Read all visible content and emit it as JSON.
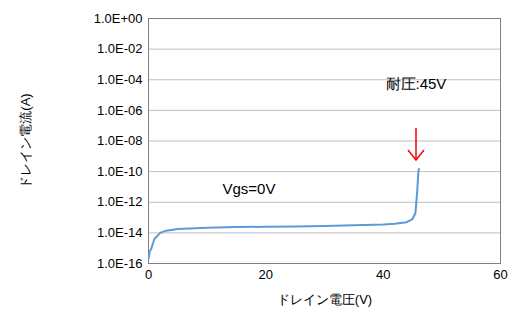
{
  "chart_data": {
    "type": "line",
    "x_label": "ドレイン電圧(V)",
    "y_label": "ドレイン電流(A)",
    "annotations": [
      "Vgs=0V",
      "耐圧:45V"
    ],
    "x": [
      0,
      0.2,
      0.5,
      1,
      2,
      3,
      5,
      8,
      10,
      15,
      20,
      25,
      30,
      35,
      40,
      42,
      44,
      45,
      45.5,
      45.8,
      46,
      46.1
    ],
    "values": [
      2e-16,
      6e-16,
      1e-15,
      4e-15,
      1e-14,
      1.4e-14,
      1.8e-14,
      2e-14,
      2.2e-14,
      2.4e-14,
      2.5e-14,
      2.6e-14,
      2.8e-14,
      3.1e-14,
      3.5e-14,
      4e-14,
      5e-14,
      8e-14,
      2e-13,
      5e-12,
      1e-10,
      1.5e-10
    ],
    "color": "#5b9bd5",
    "log": "y",
    "grid": true,
    "xlim": [
      0,
      60
    ],
    "xticks": [
      0,
      20,
      40,
      60
    ],
    "ylim": [
      1e-16,
      1
    ],
    "yticks": [
      {
        "value": 1,
        "label": "1.0E+00"
      },
      {
        "value": 0.01,
        "label": "1.0E-02"
      },
      {
        "value": 0.0001,
        "label": "1.0E-04"
      },
      {
        "value": 1e-06,
        "label": "1.0E-06"
      },
      {
        "value": 1e-08,
        "label": "1.0E-08"
      },
      {
        "value": 1e-10,
        "label": "1.0E-10"
      },
      {
        "value": 1e-12,
        "label": "1.0E-12"
      },
      {
        "value": 1e-14,
        "label": "1.0E-14"
      },
      {
        "value": 1e-16,
        "label": "1.0E-16"
      }
    ],
    "annotation_color": "#ff0000"
  }
}
